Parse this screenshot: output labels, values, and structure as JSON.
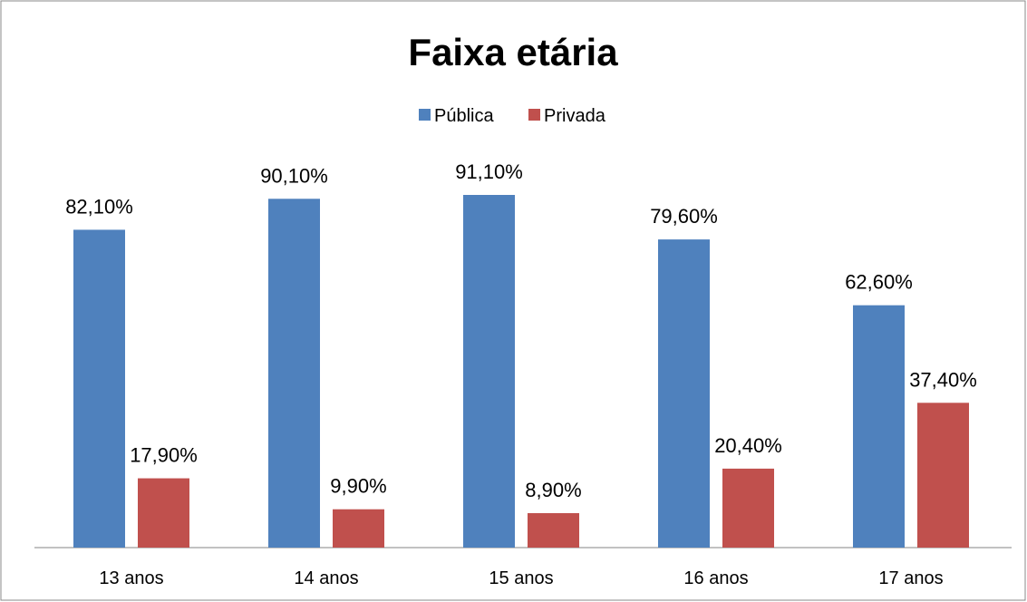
{
  "chart_data": {
    "type": "bar",
    "title": "Faixa etária",
    "categories": [
      "13 anos",
      "14 anos",
      "15 anos",
      "16 anos",
      "17 anos"
    ],
    "series": [
      {
        "name": "Pública",
        "color": "#4f81bd",
        "values": [
          82.1,
          90.1,
          91.1,
          79.6,
          62.6
        ],
        "value_labels": [
          "82,10%",
          "90,10%",
          "91,10%",
          "79,60%",
          "62,60%"
        ]
      },
      {
        "name": "Privada",
        "color": "#c0504d",
        "values": [
          17.9,
          9.9,
          8.9,
          20.4,
          37.4
        ],
        "value_labels": [
          "17,90%",
          "9,90%",
          "8,90%",
          "20,40%",
          "37,40%"
        ]
      }
    ],
    "legend": "top"
  }
}
